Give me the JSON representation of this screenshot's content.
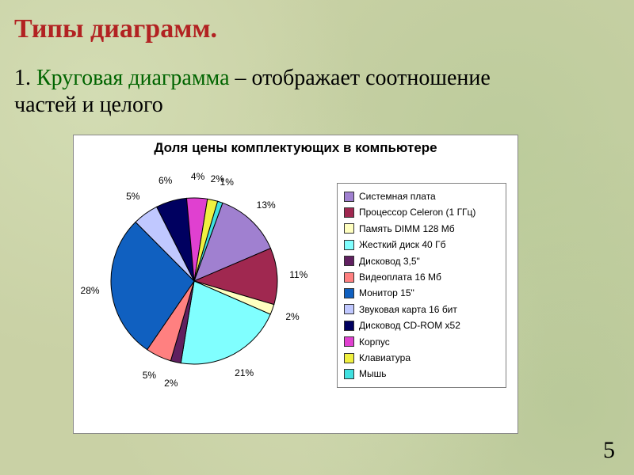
{
  "slide": {
    "title": "Типы диаграмм.",
    "title_color": "#b22222",
    "bullet_number": "1.",
    "bullet_highlight": "Круговая диаграмма",
    "bullet_highlight_color": "#006400",
    "bullet_rest": " – отображает соотношение частей и целого",
    "bullet_rest_color": "#000000",
    "page_number": "5",
    "background_color": "#c9d1a5"
  },
  "chart": {
    "type": "pie",
    "title": "Доля цены комплектующих в компьютере",
    "title_fontsize": 17,
    "background_color": "#ffffff",
    "border_color": "#888888",
    "legend_border": "#808080",
    "pie_border": "#000000",
    "label_fontsize": 12,
    "start_angle_deg": -70,
    "slices": [
      {
        "label": "Системная плата",
        "value": 13,
        "color": "#a080d0",
        "show_label": "13%"
      },
      {
        "label": "Процессор Celeron (1 ГГц)",
        "value": 11,
        "color": "#a02850",
        "show_label": "11%"
      },
      {
        "label": "Память DIMM 128 Мб",
        "value": 2,
        "color": "#ffffc0",
        "show_label": "2%"
      },
      {
        "label": "Жесткий диск 40 Гб",
        "value": 21,
        "color": "#80ffff",
        "show_label": "21%"
      },
      {
        "label": "Дисковод 3,5\"",
        "value": 2,
        "color": "#602060",
        "show_label": "2%"
      },
      {
        "label": "Видеоплата 16 Мб",
        "value": 5,
        "color": "#ff8080",
        "show_label": "5%"
      },
      {
        "label": "Монитор 15\"",
        "value": 28,
        "color": "#1060c0",
        "show_label": "28%"
      },
      {
        "label": "Звуковая карта 16 бит",
        "value": 5,
        "color": "#c0c8ff",
        "show_label": "5%"
      },
      {
        "label": "Дисковод CD-ROM x52",
        "value": 6,
        "color": "#000060",
        "show_label": "6%"
      },
      {
        "label": "Корпус",
        "value": 4,
        "color": "#e040d0",
        "show_label": "4%"
      },
      {
        "label": "Клавиатура",
        "value": 2,
        "color": "#f0f040",
        "show_label": "2%"
      },
      {
        "label": "Мышь",
        "value": 1,
        "color": "#40e0e0",
        "show_label": "1%"
      }
    ]
  }
}
